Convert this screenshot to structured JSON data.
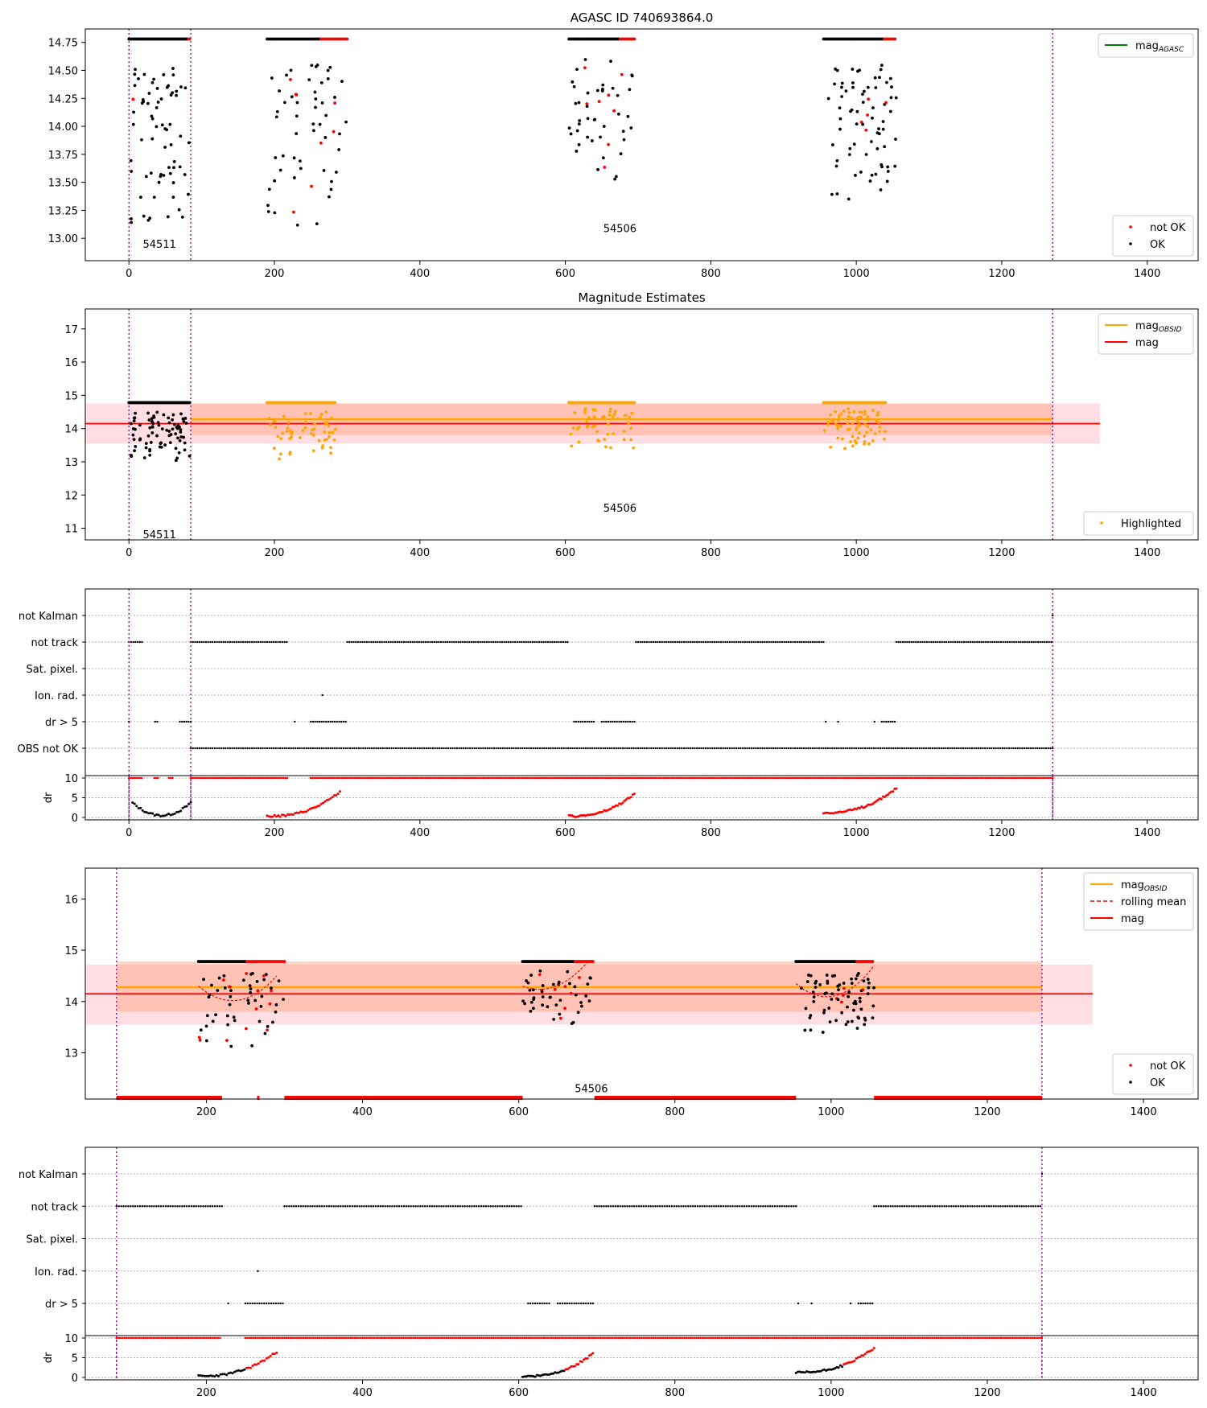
{
  "colors": {
    "ok": "#000000",
    "not_ok": "#ff0000",
    "highlight": "#ffa500",
    "agasc": "#008000",
    "obsid_band": "#ffa07a",
    "mag_band": "#ffb6c1",
    "obs_line": "#800080",
    "grid": "#b0b0b0"
  },
  "shared": {
    "obs_boundaries": [
      0,
      85,
      1270
    ],
    "flag_rows_panel3": [
      "not Kalman",
      "not track",
      "Sat. pixel.",
      "Ion. rad.",
      "dr > 5",
      "OBS not OK"
    ],
    "flag_rows_panel5": [
      "not Kalman",
      "not track",
      "Sat. pixel.",
      "Ion. rad.",
      "dr > 5"
    ],
    "dr_label": "dr",
    "dr_ticks": [
      "10",
      "5",
      "0"
    ]
  },
  "chart_data": [
    {
      "type": "scatter",
      "title": "AGASC ID 740693864.0",
      "xlim": [
        -60,
        1470
      ],
      "ylim": [
        12.8,
        14.87
      ],
      "xticks": [
        0,
        200,
        400,
        600,
        800,
        1000,
        1200,
        1400
      ],
      "yticks": [
        13.0,
        13.25,
        13.5,
        13.75,
        14.0,
        14.25,
        14.5,
        14.75
      ],
      "ytick_labels": [
        "13.00",
        "13.25",
        "13.50",
        "13.75",
        "14.00",
        "14.25",
        "14.50",
        "14.75"
      ],
      "legend_upper": [
        {
          "label": "mag",
          "sub": "AGASC",
          "kind": "line",
          "color": "agasc"
        }
      ],
      "legend_lower": [
        {
          "label": "not OK",
          "kind": "dot",
          "color": "not_ok"
        },
        {
          "label": "OK",
          "kind": "dot",
          "color": "ok"
        }
      ],
      "annotations": [
        {
          "text": "54511",
          "x": 42,
          "y": 12.9
        },
        {
          "text": "54506",
          "x": 675,
          "y": 13.04
        }
      ],
      "clusters": [
        {
          "x0": 0,
          "x1": 85,
          "ymin": 12.97,
          "ymax": 14.55,
          "n": 70,
          "red_frac": 0.02,
          "cap": 14.78,
          "seed": 11
        },
        {
          "x0": 190,
          "x1": 300,
          "ymin": 13.04,
          "ymax": 14.6,
          "n": 60,
          "red_frac": 0.15,
          "cap": 14.78,
          "seed": 23
        },
        {
          "x0": 605,
          "x1": 695,
          "ymin": 13.35,
          "ymax": 14.6,
          "n": 50,
          "red_frac": 0.1,
          "cap": 14.78,
          "seed": 37
        },
        {
          "x0": 955,
          "x1": 1055,
          "ymin": 13.35,
          "ymax": 14.6,
          "n": 75,
          "red_frac": 0.08,
          "cap": 14.78,
          "seed": 41
        }
      ]
    },
    {
      "type": "scatter",
      "title": "Magnitude Estimates",
      "xlim": [
        -60,
        1470
      ],
      "ylim": [
        10.65,
        17.6
      ],
      "xticks": [
        0,
        200,
        400,
        600,
        800,
        1000,
        1200,
        1400
      ],
      "yticks": [
        11,
        12,
        13,
        14,
        15,
        16,
        17
      ],
      "legend_upper": [
        {
          "label": "mag",
          "sub": "OBSID",
          "kind": "line",
          "color": "highlight"
        },
        {
          "label": "mag",
          "kind": "line",
          "color": "not_ok"
        }
      ],
      "legend_lower": [
        {
          "label": "Highlighted",
          "kind": "dot",
          "color": "highlight"
        }
      ],
      "annotations": [
        {
          "text": "54511",
          "x": 42,
          "y": 10.65
        },
        {
          "text": "54506",
          "x": 675,
          "y": 11.45
        }
      ],
      "mag": 14.15,
      "mag_band": [
        13.55,
        14.75
      ],
      "mag_range": [
        -60,
        1335
      ],
      "mag_obsid": 14.28,
      "obsid_band": [
        13.8,
        14.75
      ],
      "obsid_range": [
        85,
        1270
      ],
      "clusters": [
        {
          "x0": 0,
          "x1": 85,
          "ymin": 13.0,
          "ymax": 14.5,
          "n": 80,
          "red_frac": 0,
          "cap": 14.78,
          "seed": 11,
          "color": "ok"
        },
        {
          "x0": 190,
          "x1": 285,
          "ymin": 13.05,
          "ymax": 14.5,
          "n": 55,
          "red_frac": 0,
          "cap": 14.78,
          "seed": 23,
          "color": "highlight"
        },
        {
          "x0": 605,
          "x1": 695,
          "ymin": 13.4,
          "ymax": 14.6,
          "n": 50,
          "red_frac": 0,
          "cap": 14.78,
          "seed": 37,
          "color": "highlight"
        },
        {
          "x0": 955,
          "x1": 1040,
          "ymin": 13.4,
          "ymax": 14.6,
          "n": 75,
          "red_frac": 0,
          "cap": 14.78,
          "seed": 41,
          "color": "highlight"
        }
      ]
    },
    {
      "type": "scatter",
      "title": "",
      "xlim": [
        -60,
        1470
      ],
      "xticks": [
        0,
        200,
        400,
        600,
        800,
        1000,
        1200,
        1400
      ],
      "flag_segments": {
        "not Kalman": [
          [
            1270,
            1272
          ]
        ],
        "not track": [
          [
            0,
            18
          ],
          [
            85,
            218
          ],
          [
            300,
            605
          ],
          [
            697,
            955
          ],
          [
            1055,
            1270
          ]
        ],
        "Sat. pixel.": [],
        "Ion. rad.": [
          [
            266,
            268
          ]
        ],
        "dr > 5": [
          [
            0,
            1
          ],
          [
            36,
            40
          ],
          [
            70,
            85
          ],
          [
            228,
            230
          ],
          [
            250,
            300
          ],
          [
            612,
            640
          ],
          [
            650,
            695
          ],
          [
            958,
            960
          ],
          [
            975,
            977
          ],
          [
            1025,
            1027
          ],
          [
            1035,
            1055
          ]
        ],
        "OBS not OK": [
          [
            85,
            1270
          ]
        ]
      },
      "dr_top": [
        [
          0,
          18
        ],
        [
          35,
          40
        ],
        [
          55,
          60
        ],
        [
          85,
          218
        ],
        [
          250,
          1270
        ]
      ],
      "dr_curves": [
        {
          "x0": 5,
          "x1": 85,
          "shape": "u",
          "ymin": 0.5,
          "ymax": 3.7,
          "n": 30,
          "color": "ok"
        },
        {
          "x0": 190,
          "x1": 290,
          "shape": "rise",
          "ymin": 0.3,
          "ymax": 6.5,
          "n": 40,
          "color": "not_ok"
        },
        {
          "x0": 605,
          "x1": 695,
          "shape": "rise",
          "ymin": 0.3,
          "ymax": 6.0,
          "n": 40,
          "color": "not_ok"
        },
        {
          "x0": 955,
          "x1": 1055,
          "shape": "rise",
          "ymin": 1.2,
          "ymax": 7.5,
          "n": 45,
          "color": "not_ok"
        }
      ]
    },
    {
      "type": "scatter",
      "title": "",
      "xlim": [
        45,
        1470
      ],
      "ylim": [
        12.1,
        16.6
      ],
      "xticks": [
        200,
        400,
        600,
        800,
        1000,
        1200,
        1400
      ],
      "yticks": [
        13,
        14,
        15,
        16
      ],
      "legend_upper": [
        {
          "label": "mag",
          "sub": "OBSID",
          "kind": "line",
          "color": "highlight"
        },
        {
          "label": "rolling mean",
          "kind": "dash",
          "color": "not_ok"
        },
        {
          "label": "mag",
          "kind": "line",
          "color": "not_ok"
        }
      ],
      "legend_lower": [
        {
          "label": "not OK",
          "kind": "dot",
          "color": "not_ok"
        },
        {
          "label": "OK",
          "kind": "dot",
          "color": "ok"
        }
      ],
      "annotations": [
        {
          "text": "54506",
          "x": 693,
          "y": 12.2
        }
      ],
      "mag": 14.15,
      "mag_band": [
        13.55,
        14.72
      ],
      "mag_range": [
        45,
        1335
      ],
      "mag_obsid": 14.28,
      "obsid_band": [
        13.8,
        14.78
      ],
      "obsid_range": [
        85,
        1270
      ],
      "clusters": [
        {
          "x0": 190,
          "x1": 300,
          "ymin": 13.05,
          "ymax": 14.6,
          "n": 60,
          "red_frac": 0.2,
          "cap": 14.78,
          "seed": 23
        },
        {
          "x0": 605,
          "x1": 695,
          "ymin": 13.4,
          "ymax": 14.6,
          "n": 50,
          "red_frac": 0.12,
          "cap": 14.78,
          "seed": 37
        },
        {
          "x0": 955,
          "x1": 1055,
          "ymin": 13.4,
          "ymax": 14.6,
          "n": 75,
          "red_frac": 0.1,
          "cap": 14.78,
          "seed": 41
        }
      ],
      "rolling": [
        {
          "x0": 190,
          "x1": 290,
          "yA": 14.3,
          "yB": 13.9,
          "yC": 14.5
        },
        {
          "x0": 605,
          "x1": 690,
          "yA": 14.3,
          "yB": 14.3,
          "yC": 14.8
        },
        {
          "x0": 955,
          "x1": 1055,
          "yA": 14.35,
          "yB": 13.95,
          "yC": 14.7
        }
      ],
      "bottom_rug": [
        [
          85,
          220
        ],
        [
          265,
          268
        ],
        [
          300,
          605
        ],
        [
          697,
          955
        ],
        [
          1055,
          1270
        ]
      ],
      "rug_y": 12.1
    },
    {
      "type": "scatter",
      "title": "",
      "xlim": [
        45,
        1470
      ],
      "xticks": [
        200,
        400,
        600,
        800,
        1000,
        1200,
        1400
      ],
      "flag_segments": {
        "not Kalman": [
          [
            1270,
            1272
          ]
        ],
        "not track": [
          [
            85,
            220
          ],
          [
            300,
            605
          ],
          [
            697,
            955
          ],
          [
            1055,
            1270
          ]
        ],
        "Sat. pixel.": [],
        "Ion. rad.": [
          [
            266,
            268
          ]
        ],
        "dr > 5": [
          [
            228,
            230
          ],
          [
            250,
            300
          ],
          [
            612,
            640
          ],
          [
            650,
            695
          ],
          [
            958,
            960
          ],
          [
            975,
            977
          ],
          [
            1025,
            1027
          ],
          [
            1035,
            1055
          ]
        ]
      },
      "dr_top": [
        [
          85,
          218
        ],
        [
          250,
          1270
        ]
      ],
      "dr_curves": [
        {
          "x0": 190,
          "x1": 290,
          "shape": "rise",
          "ymin": 0.3,
          "ymax": 6.5,
          "n": 40,
          "color": "ok",
          "red_after": 0.6
        },
        {
          "x0": 605,
          "x1": 695,
          "shape": "rise",
          "ymin": 0.3,
          "ymax": 6.0,
          "n": 40,
          "color": "ok",
          "red_after": 0.6
        },
        {
          "x0": 955,
          "x1": 1055,
          "shape": "rise",
          "ymin": 1.2,
          "ymax": 7.5,
          "n": 45,
          "color": "ok",
          "red_after": 0.6
        }
      ]
    }
  ]
}
